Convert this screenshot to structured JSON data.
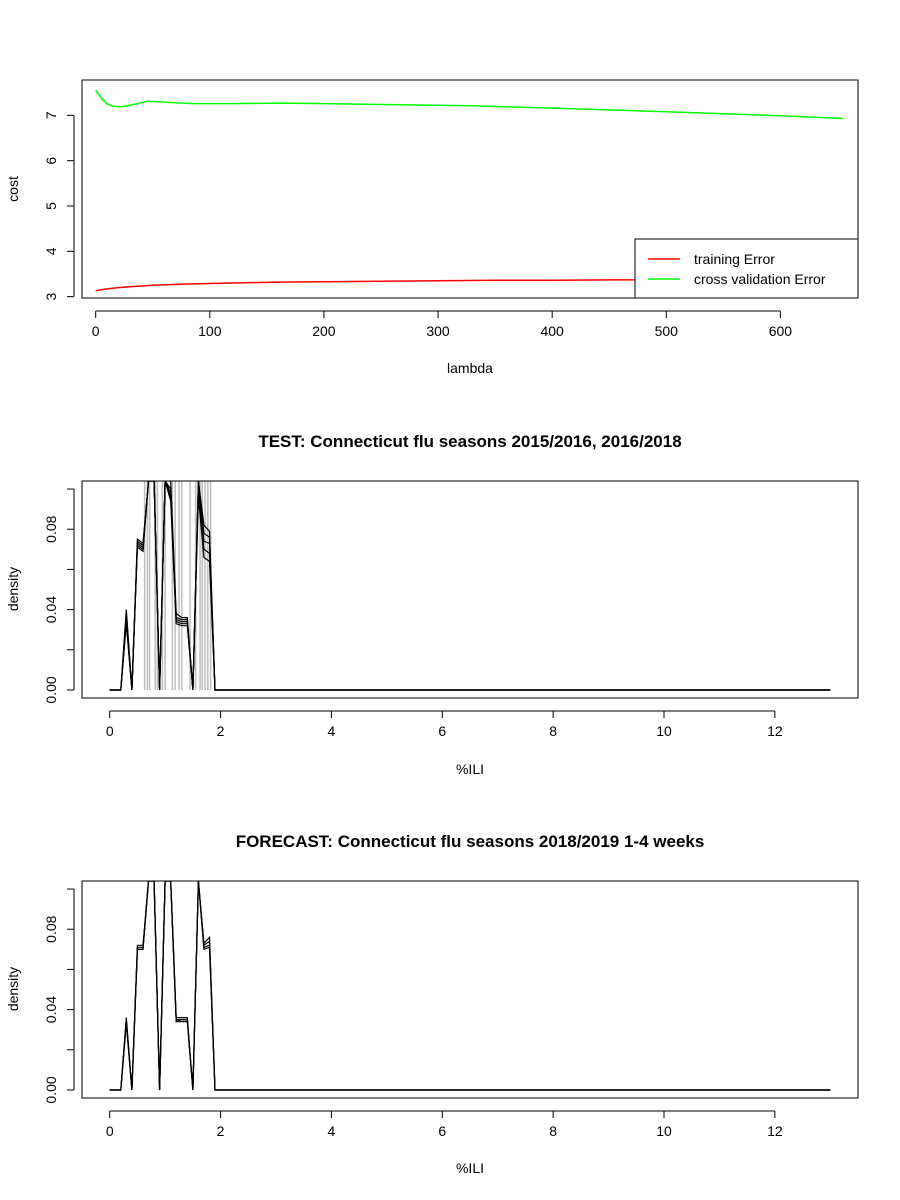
{
  "chart_data": [
    {
      "type": "line",
      "title": "",
      "xlabel": "lambda",
      "ylabel": "cost",
      "xlim": [
        -12,
        668
      ],
      "ylim": [
        2.97,
        7.78
      ],
      "xticks": [
        0,
        100,
        200,
        300,
        400,
        500,
        600
      ],
      "yticks": [
        3,
        4,
        5,
        6,
        7
      ],
      "legend_position": "bottom-right",
      "series": [
        {
          "name": "training Error",
          "color": "#ff0000",
          "x": [
            0,
            5,
            10,
            20,
            30,
            50,
            80,
            120,
            160,
            200,
            250,
            300,
            350,
            400,
            450,
            500,
            550,
            600,
            655
          ],
          "y": [
            3.13,
            3.15,
            3.17,
            3.2,
            3.22,
            3.25,
            3.28,
            3.3,
            3.32,
            3.33,
            3.34,
            3.35,
            3.36,
            3.36,
            3.37,
            3.37,
            3.38,
            3.38,
            3.39
          ]
        },
        {
          "name": "cross validation Error",
          "color": "#00ff00",
          "x": [
            0,
            2,
            4,
            6,
            8,
            10,
            15,
            22,
            30,
            40,
            45,
            55,
            70,
            85,
            120,
            165,
            200,
            250,
            330,
            400,
            500,
            600,
            655
          ],
          "y": [
            7.56,
            7.48,
            7.42,
            7.35,
            7.3,
            7.25,
            7.2,
            7.19,
            7.22,
            7.28,
            7.31,
            7.3,
            7.28,
            7.26,
            7.26,
            7.27,
            7.26,
            7.24,
            7.21,
            7.16,
            7.08,
            6.99,
            6.93
          ]
        }
      ]
    },
    {
      "type": "line",
      "title": "TEST: Connecticut  flu seasons 2015/2016, 2016/2018",
      "xlabel": "%ILI",
      "ylabel": "density",
      "xlim": [
        -0.5,
        13.5
      ],
      "ylim": [
        -0.004,
        0.104
      ],
      "xticks": [
        0,
        2,
        4,
        6,
        8,
        10,
        12
      ],
      "yticks": [
        0.0,
        0.04,
        0.08
      ],
      "ytick_labels": [
        "0.00",
        "0.04",
        "0.08"
      ],
      "minor_yticks": [
        0.02,
        0.06,
        0.1
      ],
      "x": [
        0,
        0.2,
        0.3,
        0.4,
        0.5,
        0.6,
        0.7,
        0.8,
        0.9,
        1.0,
        1.1,
        1.2,
        1.3,
        1.4,
        1.5,
        1.6,
        1.7,
        1.8,
        1.9,
        13.0
      ],
      "series": [
        {
          "color": "#000000",
          "y": [
            0,
            0,
            0.04,
            0,
            0.075,
            0.073,
            0.104,
            0.104,
            0,
            0.104,
            0.104,
            0.038,
            0.036,
            0.036,
            0,
            0.104,
            0.082,
            0.079,
            0,
            0
          ]
        },
        {
          "color": "#000000",
          "y": [
            0,
            0,
            0.038,
            0,
            0.074,
            0.072,
            0.104,
            0.104,
            0,
            0.104,
            0.1,
            0.036,
            0.035,
            0.035,
            0,
            0.104,
            0.078,
            0.076,
            0,
            0
          ]
        },
        {
          "color": "#000000",
          "y": [
            0,
            0,
            0.036,
            0,
            0.073,
            0.071,
            0.104,
            0.104,
            0,
            0.104,
            0.098,
            0.035,
            0.034,
            0.034,
            0,
            0.104,
            0.074,
            0.073,
            0,
            0
          ]
        },
        {
          "color": "#000000",
          "y": [
            0,
            0,
            0.034,
            0,
            0.072,
            0.07,
            0.104,
            0.104,
            0,
            0.104,
            0.096,
            0.034,
            0.033,
            0.033,
            0,
            0.1,
            0.07,
            0.068,
            0,
            0
          ]
        },
        {
          "color": "#000000",
          "y": [
            0,
            0,
            0.033,
            0,
            0.071,
            0.069,
            0.104,
            0.104,
            0,
            0.104,
            0.094,
            0.033,
            0.032,
            0.032,
            0,
            0.096,
            0.066,
            0.064,
            0,
            0
          ]
        }
      ],
      "vertical_lines": {
        "color": "#bebebe",
        "x": [
          0.63,
          0.68,
          0.72,
          0.82,
          0.86,
          0.95,
          1.0,
          1.13,
          1.18,
          1.25,
          1.3,
          1.45,
          1.55,
          1.63,
          1.67,
          1.72,
          1.77,
          1.82
        ]
      }
    },
    {
      "type": "line",
      "title": "FORECAST: Connecticut flu seasons 2018/2019 1-4 weeks",
      "xlabel": "%ILI",
      "ylabel": "density",
      "xlim": [
        -0.5,
        13.5
      ],
      "ylim": [
        -0.004,
        0.104
      ],
      "xticks": [
        0,
        2,
        4,
        6,
        8,
        10,
        12
      ],
      "yticks": [
        0.0,
        0.04,
        0.08
      ],
      "ytick_labels": [
        "0.00",
        "0.04",
        "0.08"
      ],
      "minor_yticks": [
        0.02,
        0.06,
        0.1
      ],
      "x": [
        0,
        0.2,
        0.3,
        0.4,
        0.5,
        0.6,
        0.7,
        0.8,
        0.9,
        1.0,
        1.1,
        1.2,
        1.3,
        1.4,
        1.5,
        1.6,
        1.7,
        1.8,
        1.9,
        13.0
      ],
      "series": [
        {
          "color": "#000000",
          "y": [
            0,
            0,
            0.036,
            0,
            0.072,
            0.072,
            0.104,
            0.104,
            0,
            0.104,
            0.104,
            0.036,
            0.036,
            0.036,
            0,
            0.104,
            0.073,
            0.076,
            0,
            0
          ]
        },
        {
          "color": "#000000",
          "y": [
            0,
            0,
            0.035,
            0,
            0.071,
            0.071,
            0.104,
            0.104,
            0,
            0.104,
            0.104,
            0.035,
            0.035,
            0.035,
            0,
            0.104,
            0.072,
            0.074,
            0,
            0
          ]
        },
        {
          "color": "#000000",
          "y": [
            0,
            0,
            0.034,
            0,
            0.07,
            0.07,
            0.104,
            0.104,
            0,
            0.104,
            0.104,
            0.034,
            0.035,
            0.035,
            0,
            0.104,
            0.071,
            0.072,
            0,
            0
          ]
        },
        {
          "color": "#000000",
          "y": [
            0,
            0,
            0.033,
            0,
            0.07,
            0.07,
            0.104,
            0.104,
            0,
            0.104,
            0.104,
            0.034,
            0.034,
            0.034,
            0,
            0.104,
            0.07,
            0.071,
            0,
            0
          ]
        }
      ]
    }
  ]
}
